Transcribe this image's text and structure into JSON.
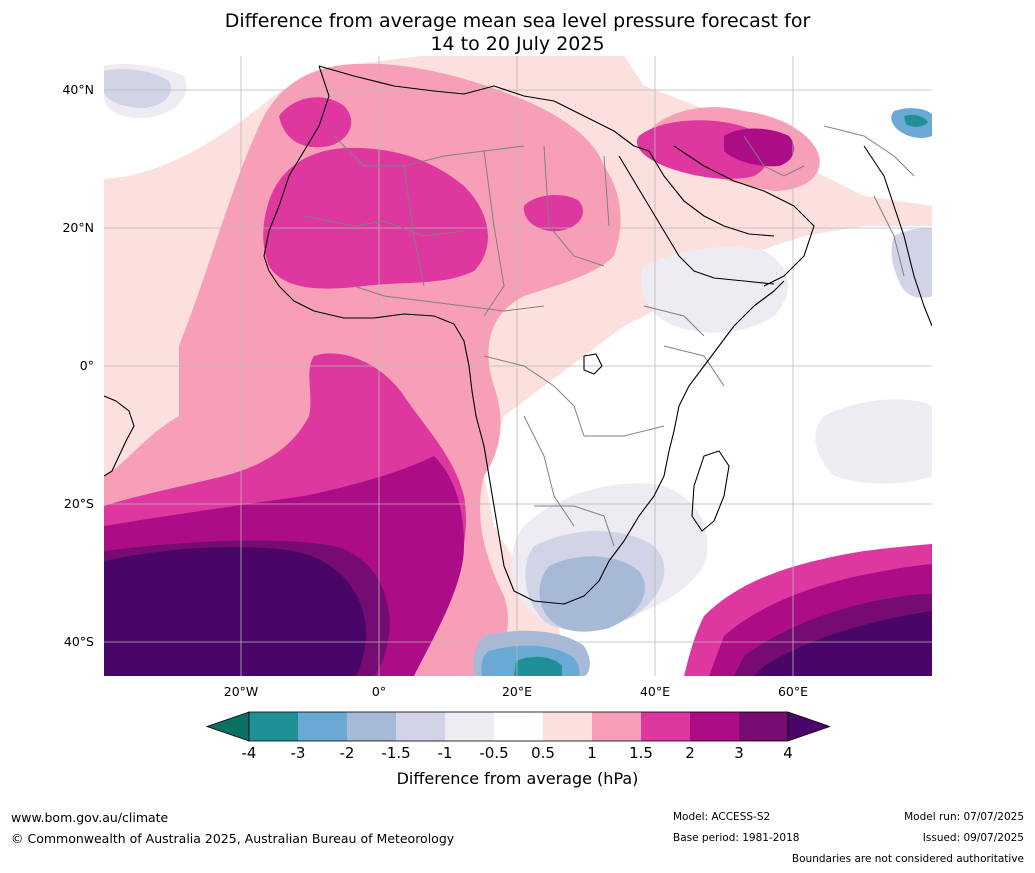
{
  "title": {
    "line1": "Difference from average mean sea level pressure forecast for",
    "line2": "14 to 20 July 2025"
  },
  "map": {
    "lat_labels": [
      "40°N",
      "20°N",
      "0°",
      "20°S",
      "40°S"
    ],
    "lon_labels": [
      "20°W",
      "0°",
      "20°E",
      "40°E",
      "60°E"
    ],
    "icons": [
      "contour-map",
      "coastline",
      "country-boundary"
    ]
  },
  "colorbar": {
    "label": "Difference from average (hPa)",
    "ticks": [
      "-4",
      "-3",
      "-2",
      "-1.5",
      "-1",
      "-0.5",
      "0.5",
      "1",
      "1.5",
      "2",
      "3",
      "4"
    ],
    "colors": [
      "#0a7061",
      "#1f9196",
      "#6aa9d3",
      "#a6b9d7",
      "#d1d3e6",
      "#efebf3",
      "#ffffff",
      "#fce0dd",
      "#f89fb8",
      "#df37a0",
      "#ac0c86",
      "#760b72",
      "#490567"
    ]
  },
  "footer": {
    "website": "www.bom.gov.au/climate",
    "copyright": "© Commonwealth of Australia 2025, Australian Bureau of Meteorology",
    "model": "Model: ACCESS-S2",
    "base_period": "Base period: 1981-2018",
    "model_run": "Model run: 07/07/2025",
    "issued": "Issued: 09/07/2025",
    "disclaimer": "Boundaries are not considered authoritative"
  }
}
